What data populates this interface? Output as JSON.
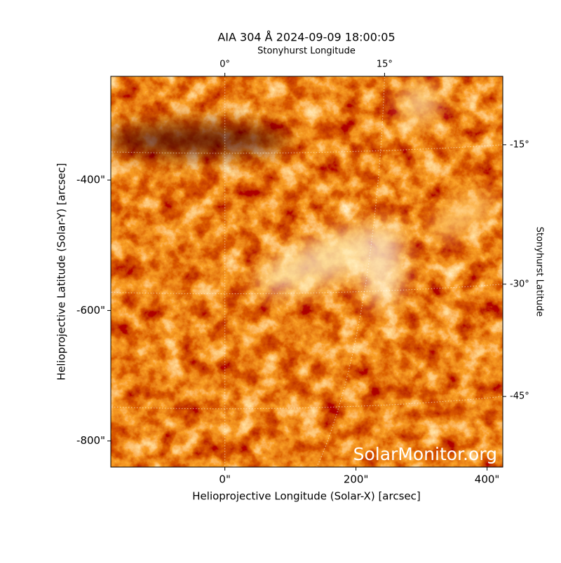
{
  "chart_data": {
    "type": "image",
    "title": "AIA 304 Å 2024-09-09 18:00:05",
    "watermark": "SolarMonitor.org",
    "x_label": "Helioprojective Longitude (Solar-X) [arcsec]",
    "y_label": "Helioprojective Latitude (Solar-Y) [arcsec]",
    "x2_label": "Stonyhurst Longitude",
    "y2_label": "Stonyhurst Latitude",
    "xlim": [
      -174,
      424
    ],
    "ylim": [
      -840,
      -241
    ],
    "xticks": [
      {
        "value": 0,
        "label": "0\""
      },
      {
        "value": 200,
        "label": "200\""
      },
      {
        "value": 400,
        "label": "400\""
      }
    ],
    "yticks": [
      {
        "value": -400,
        "label": "-400\""
      },
      {
        "value": -600,
        "label": "-600\""
      },
      {
        "value": -800,
        "label": "-800\""
      }
    ],
    "x2ticks": [
      {
        "value": 0,
        "label": "0°"
      },
      {
        "value": 15,
        "label": "15°"
      }
    ],
    "y2ticks": [
      {
        "value": -15,
        "label": "-15°"
      },
      {
        "value": -30,
        "label": "-30°"
      },
      {
        "value": -45,
        "label": "-45°"
      }
    ],
    "grid": true
  }
}
